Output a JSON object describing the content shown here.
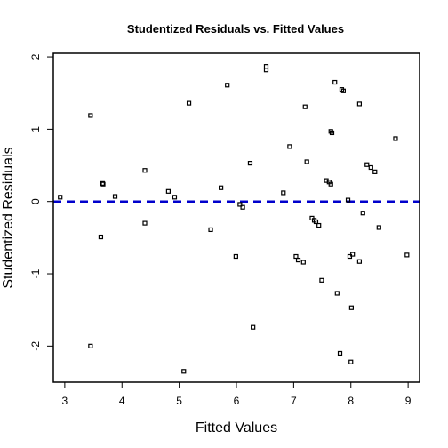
{
  "chart_data": {
    "type": "scatter",
    "title": "Studentized Residuals vs. Fitted Values",
    "xlabel": "Fitted Values",
    "ylabel": "Studentized Residuals",
    "xlim": [
      2.8,
      9.2
    ],
    "ylim": [
      -2.5,
      2.05
    ],
    "x_ticks": [
      3,
      4,
      5,
      6,
      7,
      8,
      9
    ],
    "y_ticks": [
      -2,
      -1,
      0,
      1,
      2
    ],
    "reference_line": {
      "y": 0,
      "style": "dashed",
      "color": "#0000cc"
    },
    "marker_color": "#000000",
    "grid": false,
    "points": [
      {
        "x": 2.92,
        "y": 0.06
      },
      {
        "x": 3.45,
        "y": 1.19
      },
      {
        "x": 3.45,
        "y": -2.0
      },
      {
        "x": 3.63,
        "y": -0.49
      },
      {
        "x": 3.66,
        "y": 0.25
      },
      {
        "x": 3.67,
        "y": 0.24
      },
      {
        "x": 3.88,
        "y": 0.07
      },
      {
        "x": 4.4,
        "y": 0.43
      },
      {
        "x": 4.4,
        "y": -0.3
      },
      {
        "x": 4.81,
        "y": 0.14
      },
      {
        "x": 4.92,
        "y": 0.06
      },
      {
        "x": 5.08,
        "y": -2.35
      },
      {
        "x": 5.17,
        "y": 1.36
      },
      {
        "x": 5.55,
        "y": -0.39
      },
      {
        "x": 5.73,
        "y": 0.19
      },
      {
        "x": 5.84,
        "y": 1.61
      },
      {
        "x": 5.99,
        "y": -0.76
      },
      {
        "x": 6.06,
        "y": -0.04
      },
      {
        "x": 6.11,
        "y": -0.08
      },
      {
        "x": 6.24,
        "y": 0.53
      },
      {
        "x": 6.29,
        "y": -1.74
      },
      {
        "x": 6.52,
        "y": 1.87
      },
      {
        "x": 6.52,
        "y": 1.82
      },
      {
        "x": 6.82,
        "y": 0.12
      },
      {
        "x": 6.93,
        "y": 0.76
      },
      {
        "x": 7.04,
        "y": -0.76
      },
      {
        "x": 7.08,
        "y": -0.81
      },
      {
        "x": 7.17,
        "y": -0.84
      },
      {
        "x": 7.2,
        "y": 1.31
      },
      {
        "x": 7.23,
        "y": 0.55
      },
      {
        "x": 7.32,
        "y": -0.23
      },
      {
        "x": 7.36,
        "y": -0.26
      },
      {
        "x": 7.39,
        "y": -0.28
      },
      {
        "x": 7.44,
        "y": -0.33
      },
      {
        "x": 7.49,
        "y": -1.09
      },
      {
        "x": 7.57,
        "y": 0.29
      },
      {
        "x": 7.62,
        "y": 0.27
      },
      {
        "x": 7.65,
        "y": 0.24
      },
      {
        "x": 7.65,
        "y": 0.97
      },
      {
        "x": 7.67,
        "y": 0.95
      },
      {
        "x": 7.72,
        "y": 1.65
      },
      {
        "x": 7.76,
        "y": -1.27
      },
      {
        "x": 7.81,
        "y": -2.1
      },
      {
        "x": 7.84,
        "y": 1.55
      },
      {
        "x": 7.87,
        "y": 1.53
      },
      {
        "x": 7.95,
        "y": 0.02
      },
      {
        "x": 7.98,
        "y": -0.76
      },
      {
        "x": 8.0,
        "y": -2.22
      },
      {
        "x": 8.01,
        "y": -1.47
      },
      {
        "x": 8.03,
        "y": -0.73
      },
      {
        "x": 8.15,
        "y": 1.35
      },
      {
        "x": 8.15,
        "y": -0.83
      },
      {
        "x": 8.21,
        "y": -0.16
      },
      {
        "x": 8.28,
        "y": 0.51
      },
      {
        "x": 8.35,
        "y": 0.47
      },
      {
        "x": 8.42,
        "y": 0.41
      },
      {
        "x": 8.49,
        "y": -0.36
      },
      {
        "x": 8.78,
        "y": 0.87
      },
      {
        "x": 8.98,
        "y": -0.74
      }
    ]
  }
}
